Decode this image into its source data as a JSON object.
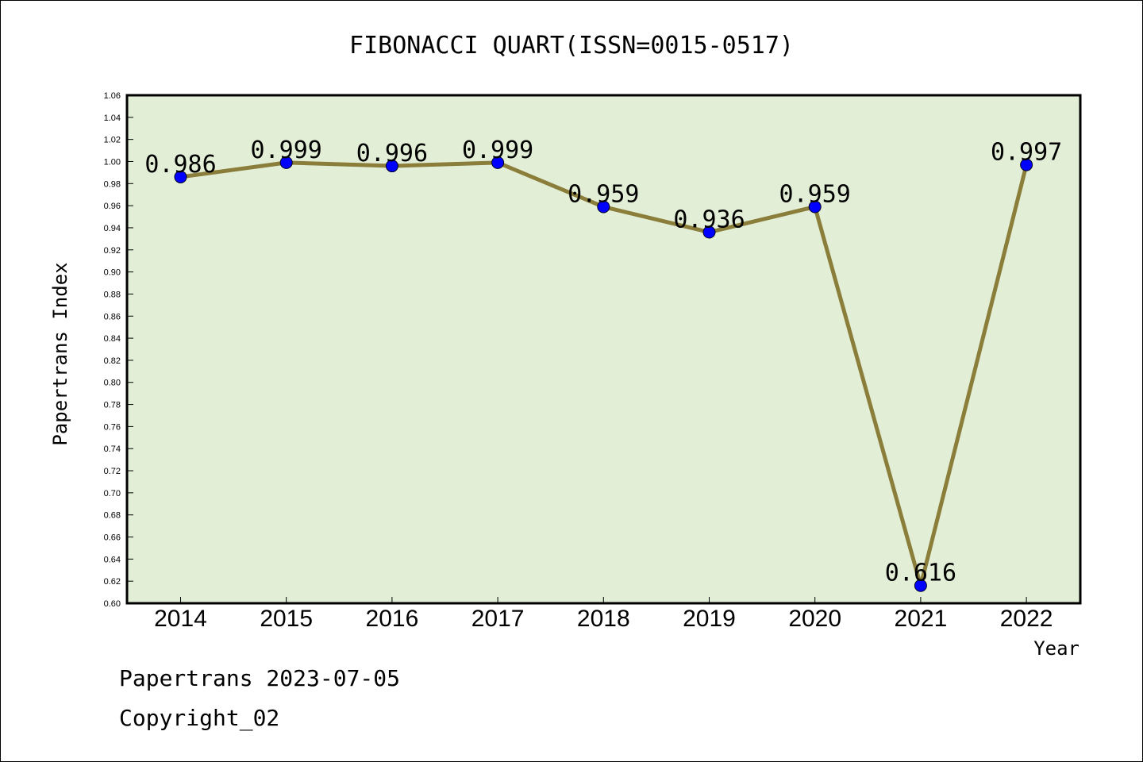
{
  "chart_data": {
    "type": "line",
    "title": "FIBONACCI QUART(ISSN=0015-0517)",
    "xlabel": "Year",
    "ylabel": "Papertrans Index",
    "categories": [
      "2014",
      "2015",
      "2016",
      "2017",
      "2018",
      "2019",
      "2020",
      "2021",
      "2022"
    ],
    "values": [
      0.986,
      0.999,
      0.996,
      0.999,
      0.959,
      0.936,
      0.959,
      0.616,
      0.997
    ],
    "value_labels": [
      "0.986",
      "0.999",
      "0.996",
      "0.999",
      "0.959",
      "0.936",
      "0.959",
      "0.616",
      "0.997"
    ],
    "ylim": [
      0.6,
      1.06
    ],
    "yticks": [
      "0.60",
      "0.62",
      "0.64",
      "0.66",
      "0.68",
      "0.70",
      "0.72",
      "0.74",
      "0.76",
      "0.78",
      "0.80",
      "0.82",
      "0.84",
      "0.86",
      "0.88",
      "0.90",
      "0.92",
      "0.94",
      "0.96",
      "0.98",
      "1.00",
      "1.02",
      "1.04",
      "1.06"
    ],
    "grid": false,
    "colors": {
      "plot_background": "#e2efd6",
      "line": "#8b7d3a",
      "marker": "#0000ff"
    }
  },
  "footer": {
    "line1": "Papertrans 2023-07-05",
    "line2": "Copyright_02"
  }
}
